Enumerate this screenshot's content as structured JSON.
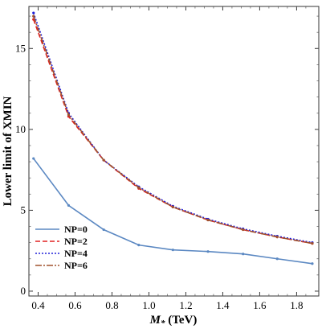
{
  "chart_data": {
    "type": "line",
    "xlabel_main": "M",
    "xlabel_sub": "*",
    "xlabel_rest": " (TeV)",
    "ylabel": "Lower limit of XMIN",
    "xlim": [
      0.35,
      1.92
    ],
    "ylim": [
      -0.3,
      17.6
    ],
    "x_ticks": [
      0.4,
      0.6,
      0.8,
      1.0,
      1.2,
      1.4,
      1.6,
      1.8
    ],
    "x_tick_labels": [
      "0.4",
      "0.6",
      "0.8",
      "1.0",
      "1.2",
      "1.4",
      "1.6",
      "1.8"
    ],
    "y_ticks": [
      0,
      5,
      10,
      15
    ],
    "y_tick_labels": [
      "0",
      "5",
      "10",
      "15"
    ],
    "grid": false,
    "legend_position": "bottom-left",
    "series": [
      {
        "name": "NP=0",
        "color": "#5b88c2",
        "dash": "solid",
        "x": [
          0.375,
          0.565,
          0.755,
          0.945,
          1.13,
          1.32,
          1.51,
          1.695,
          1.885
        ],
        "y": [
          8.2,
          5.3,
          3.8,
          2.85,
          2.55,
          2.45,
          2.3,
          2.0,
          1.7
        ]
      },
      {
        "name": "NP=2",
        "color": "#e02020",
        "dash": "6,3",
        "x": [
          0.375,
          0.565,
          0.755,
          0.945,
          1.13,
          1.32,
          1.51,
          1.695,
          1.885
        ],
        "y": [
          16.8,
          10.8,
          8.1,
          6.35,
          5.2,
          4.4,
          3.8,
          3.35,
          2.95
        ]
      },
      {
        "name": "NP=4",
        "color": "#2020d8",
        "dash": "2,2",
        "x": [
          0.375,
          0.565,
          0.755,
          0.945,
          1.13,
          1.32,
          1.51,
          1.695,
          1.885
        ],
        "y": [
          17.2,
          11.0,
          8.1,
          6.45,
          5.25,
          4.45,
          3.85,
          3.4,
          3.0
        ]
      },
      {
        "name": "NP=6",
        "color": "#a0522d",
        "dash": "8,2,2,2",
        "x": [
          0.375,
          0.565,
          0.755,
          0.945,
          1.13,
          1.32,
          1.51,
          1.695,
          1.885
        ],
        "y": [
          17.0,
          10.9,
          8.1,
          6.4,
          5.2,
          4.4,
          3.8,
          3.35,
          2.95
        ]
      }
    ]
  }
}
